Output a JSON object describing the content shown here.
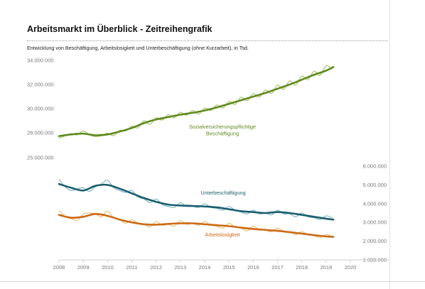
{
  "title": "Arbeitsmarkt im Überblick - Zeitreihengrafik",
  "subtitle": "Entwicklung von Beschäftigung, Arbeitslosigkeit und Unterbeschäftigung (ohne Kurzarbeit), in Tsd.",
  "chart_data": {
    "type": "line",
    "x_axis": {
      "min": 2008,
      "max": 2020,
      "tick_labels": [
        "2008",
        "2009",
        "2010",
        "2011",
        "2012",
        "2013",
        "2014",
        "2015",
        "2016",
        "2017",
        "2018",
        "2019",
        "2020"
      ]
    },
    "y_axis_left": {
      "min": 25000000,
      "max": 34000000,
      "tick_labels": [
        "34.000.000",
        "32.000.000",
        "30.000.000",
        "28.000.000",
        "25.000.000"
      ]
    },
    "y_axis_right": {
      "min": 1000000,
      "max": 6000000,
      "tick_labels": [
        "6.000.000",
        "5.000.000",
        "4.000.000",
        "3.000.000",
        "2.000.000",
        "1.000.000"
      ]
    },
    "series": [
      {
        "name": "Sozialversicherungspflichtige Beschäftigung",
        "label_lines": [
          "Sozialversicherungspflichtige",
          "Beschäftigung"
        ],
        "axis": "left",
        "color": "#5f8a1e",
        "raw_color": "#a9c46a",
        "trend": [
          [
            2008,
            27600000
          ],
          [
            2008.5,
            27800000
          ],
          [
            2009,
            27900000
          ],
          [
            2009.5,
            27700000
          ],
          [
            2010,
            27800000
          ],
          [
            2010.5,
            28100000
          ],
          [
            2011,
            28400000
          ],
          [
            2011.5,
            28800000
          ],
          [
            2012,
            29100000
          ],
          [
            2012.5,
            29300000
          ],
          [
            2013,
            29500000
          ],
          [
            2013.5,
            29650000
          ],
          [
            2014,
            29850000
          ],
          [
            2014.5,
            30100000
          ],
          [
            2015,
            30400000
          ],
          [
            2015.5,
            30700000
          ],
          [
            2016,
            31000000
          ],
          [
            2016.5,
            31300000
          ],
          [
            2017,
            31650000
          ],
          [
            2017.5,
            32000000
          ],
          [
            2018,
            32400000
          ],
          [
            2018.5,
            32800000
          ],
          [
            2019,
            33150000
          ],
          [
            2019.3,
            33450000
          ]
        ],
        "raw": [
          [
            2008,
            27300000
          ],
          [
            2008.25,
            27650000
          ],
          [
            2008.5,
            27900000
          ],
          [
            2008.75,
            27750000
          ],
          [
            2009,
            28150000
          ],
          [
            2009.25,
            27750000
          ],
          [
            2009.5,
            27550000
          ],
          [
            2009.75,
            27650000
          ],
          [
            2010,
            27950000
          ],
          [
            2010.25,
            27650000
          ],
          [
            2010.5,
            28200000
          ],
          [
            2010.75,
            28150000
          ],
          [
            2011,
            28550000
          ],
          [
            2011.25,
            28400000
          ],
          [
            2011.5,
            29000000
          ],
          [
            2011.75,
            28700000
          ],
          [
            2012,
            29250000
          ],
          [
            2012.25,
            29050000
          ],
          [
            2012.5,
            29500000
          ],
          [
            2012.75,
            29250000
          ],
          [
            2013,
            29700000
          ],
          [
            2013.25,
            29450000
          ],
          [
            2013.5,
            29850000
          ],
          [
            2013.75,
            29550000
          ],
          [
            2014,
            30050000
          ],
          [
            2014.25,
            29850000
          ],
          [
            2014.5,
            30300000
          ],
          [
            2014.75,
            30050000
          ],
          [
            2015,
            30600000
          ],
          [
            2015.25,
            30350000
          ],
          [
            2015.5,
            30950000
          ],
          [
            2015.75,
            30650000
          ],
          [
            2016,
            31250000
          ],
          [
            2016.25,
            30950000
          ],
          [
            2016.5,
            31550000
          ],
          [
            2016.75,
            31250000
          ],
          [
            2017,
            31950000
          ],
          [
            2017.25,
            31600000
          ],
          [
            2017.5,
            32300000
          ],
          [
            2017.75,
            31950000
          ],
          [
            2018,
            32700000
          ],
          [
            2018.25,
            32400000
          ],
          [
            2018.5,
            33100000
          ],
          [
            2018.75,
            32750000
          ],
          [
            2019,
            33550000
          ],
          [
            2019.25,
            33250000
          ]
        ]
      },
      {
        "name": "Unterbeschäftigung",
        "label_lines": [
          "Unterbeschäftigung"
        ],
        "axis": "right",
        "color": "#1b5e6e",
        "raw_color": "#7fb8c6",
        "trend": [
          [
            2008,
            5050000
          ],
          [
            2008.5,
            4850000
          ],
          [
            2009,
            4700000
          ],
          [
            2009.5,
            4950000
          ],
          [
            2010,
            5000000
          ],
          [
            2010.5,
            4800000
          ],
          [
            2011,
            4550000
          ],
          [
            2011.5,
            4300000
          ],
          [
            2012,
            4100000
          ],
          [
            2012.5,
            3950000
          ],
          [
            2013,
            3900000
          ],
          [
            2013.5,
            3880000
          ],
          [
            2014,
            3850000
          ],
          [
            2014.5,
            3800000
          ],
          [
            2015,
            3700000
          ],
          [
            2015.5,
            3600000
          ],
          [
            2016,
            3550000
          ],
          [
            2016.5,
            3500000
          ],
          [
            2017,
            3550000
          ],
          [
            2017.5,
            3500000
          ],
          [
            2018,
            3400000
          ],
          [
            2018.5,
            3300000
          ],
          [
            2019,
            3200000
          ],
          [
            2019.3,
            3150000
          ]
        ],
        "raw": [
          [
            2008,
            5300000
          ],
          [
            2008.25,
            4900000
          ],
          [
            2008.5,
            4700000
          ],
          [
            2008.75,
            4800000
          ],
          [
            2009,
            4850000
          ],
          [
            2009.25,
            4650000
          ],
          [
            2009.5,
            4900000
          ],
          [
            2009.75,
            5050000
          ],
          [
            2010,
            5250000
          ],
          [
            2010.25,
            4850000
          ],
          [
            2010.5,
            4700000
          ],
          [
            2010.75,
            4600000
          ],
          [
            2011,
            4700000
          ],
          [
            2011.25,
            4350000
          ],
          [
            2011.5,
            4250000
          ],
          [
            2011.75,
            4050000
          ],
          [
            2012,
            4250000
          ],
          [
            2012.25,
            3950000
          ],
          [
            2012.5,
            3850000
          ],
          [
            2012.75,
            3800000
          ],
          [
            2013,
            4050000
          ],
          [
            2013.25,
            3850000
          ],
          [
            2013.5,
            3850000
          ],
          [
            2013.75,
            3800000
          ],
          [
            2014,
            4000000
          ],
          [
            2014.25,
            3800000
          ],
          [
            2014.5,
            3750000
          ],
          [
            2014.75,
            3650000
          ],
          [
            2015,
            3850000
          ],
          [
            2015.25,
            3650000
          ],
          [
            2015.5,
            3550000
          ],
          [
            2015.75,
            3450000
          ],
          [
            2016,
            3650000
          ],
          [
            2016.25,
            3450000
          ],
          [
            2016.5,
            3500000
          ],
          [
            2016.75,
            3400000
          ],
          [
            2017,
            3650000
          ],
          [
            2017.25,
            3450000
          ],
          [
            2017.5,
            3450000
          ],
          [
            2017.75,
            3300000
          ],
          [
            2018,
            3500000
          ],
          [
            2018.25,
            3300000
          ],
          [
            2018.5,
            3250000
          ],
          [
            2018.75,
            3150000
          ],
          [
            2019,
            3350000
          ],
          [
            2019.25,
            3250000
          ]
        ]
      },
      {
        "name": "Arbeitslosigkeit",
        "label_lines": [
          "Arbeitslosigkeit"
        ],
        "axis": "right",
        "color": "#cc6a14",
        "raw_color": "#e9c27a",
        "trend": [
          [
            2008,
            3400000
          ],
          [
            2008.5,
            3250000
          ],
          [
            2009,
            3300000
          ],
          [
            2009.5,
            3450000
          ],
          [
            2010,
            3350000
          ],
          [
            2010.5,
            3150000
          ],
          [
            2011,
            3000000
          ],
          [
            2011.5,
            2900000
          ],
          [
            2012,
            2880000
          ],
          [
            2012.5,
            2920000
          ],
          [
            2013,
            2950000
          ],
          [
            2013.5,
            2950000
          ],
          [
            2014,
            2900000
          ],
          [
            2014.5,
            2850000
          ],
          [
            2015,
            2800000
          ],
          [
            2015.5,
            2720000
          ],
          [
            2016,
            2650000
          ],
          [
            2016.5,
            2600000
          ],
          [
            2017,
            2550000
          ],
          [
            2017.5,
            2480000
          ],
          [
            2018,
            2400000
          ],
          [
            2018.5,
            2320000
          ],
          [
            2019,
            2250000
          ],
          [
            2019.3,
            2230000
          ]
        ],
        "raw": [
          [
            2008,
            3650000
          ],
          [
            2008.25,
            3300000
          ],
          [
            2008.5,
            3200000
          ],
          [
            2008.75,
            3100000
          ],
          [
            2009,
            3450000
          ],
          [
            2009.25,
            3500000
          ],
          [
            2009.5,
            3450000
          ],
          [
            2009.75,
            3300000
          ],
          [
            2010,
            3600000
          ],
          [
            2010.25,
            3250000
          ],
          [
            2010.5,
            3150000
          ],
          [
            2010.75,
            2950000
          ],
          [
            2011,
            3150000
          ],
          [
            2011.25,
            2950000
          ],
          [
            2011.5,
            2900000
          ],
          [
            2011.75,
            2750000
          ],
          [
            2012,
            3050000
          ],
          [
            2012.25,
            2850000
          ],
          [
            2012.5,
            2900000
          ],
          [
            2012.75,
            2800000
          ],
          [
            2013,
            3100000
          ],
          [
            2013.25,
            2900000
          ],
          [
            2013.5,
            2950000
          ],
          [
            2013.75,
            2850000
          ],
          [
            2014,
            3050000
          ],
          [
            2014.25,
            2850000
          ],
          [
            2014.5,
            2800000
          ],
          [
            2014.75,
            2700000
          ],
          [
            2015,
            2950000
          ],
          [
            2015.25,
            2750000
          ],
          [
            2015.5,
            2700000
          ],
          [
            2015.75,
            2550000
          ],
          [
            2016,
            2800000
          ],
          [
            2016.25,
            2600000
          ],
          [
            2016.5,
            2600000
          ],
          [
            2016.75,
            2500000
          ],
          [
            2017,
            2700000
          ],
          [
            2017.25,
            2500000
          ],
          [
            2017.5,
            2500000
          ],
          [
            2017.75,
            2350000
          ],
          [
            2018,
            2500000
          ],
          [
            2018.25,
            2350000
          ],
          [
            2018.5,
            2300000
          ],
          [
            2018.75,
            2200000
          ],
          [
            2019,
            2350000
          ],
          [
            2019.25,
            2250000
          ]
        ]
      }
    ],
    "legend_placement": "inline",
    "grid": false
  }
}
